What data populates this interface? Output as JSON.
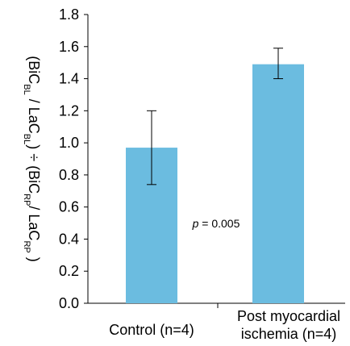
{
  "chart_data": {
    "type": "bar",
    "categories": [
      "Control (n=4)",
      "Post myocardial ischemia (n=4)"
    ],
    "category_lines": [
      [
        "Control (n=4)"
      ],
      [
        "Post myocardial",
        "ischemia (n=4)"
      ]
    ],
    "values": [
      0.97,
      1.49
    ],
    "error_upper": [
      1.2,
      1.59
    ],
    "error_lower": [
      0.74,
      1.4
    ],
    "ylim": [
      0,
      1.8
    ],
    "yticks": [
      0.0,
      0.2,
      0.4,
      0.6,
      0.8,
      1.0,
      1.2,
      1.4,
      1.6,
      1.8
    ],
    "ytick_labels": [
      "0.0",
      "0.2",
      "0.4",
      "0.6",
      "0.8",
      "1.0",
      "1.2",
      "1.4",
      "1.6",
      "1.8"
    ],
    "ylabel": {
      "parts": [
        {
          "text": "(BiC",
          "sub": false
        },
        {
          "text": "BL",
          "sub": true
        },
        {
          "text": " / LaC",
          "sub": false
        },
        {
          "text": "BL",
          "sub": true
        },
        {
          "text": ") ÷ (BiC",
          "sub": false
        },
        {
          "text": "RP",
          "sub": true
        },
        {
          "text": "/ LaC",
          "sub": false
        },
        {
          "text": "RP",
          "sub": true
        },
        {
          "text": " )",
          "sub": false
        }
      ]
    },
    "annotation": {
      "italic": "p",
      "rest": " = 0.005"
    },
    "bar_color": "#6BBCE0",
    "grid": false,
    "legend": "none"
  }
}
